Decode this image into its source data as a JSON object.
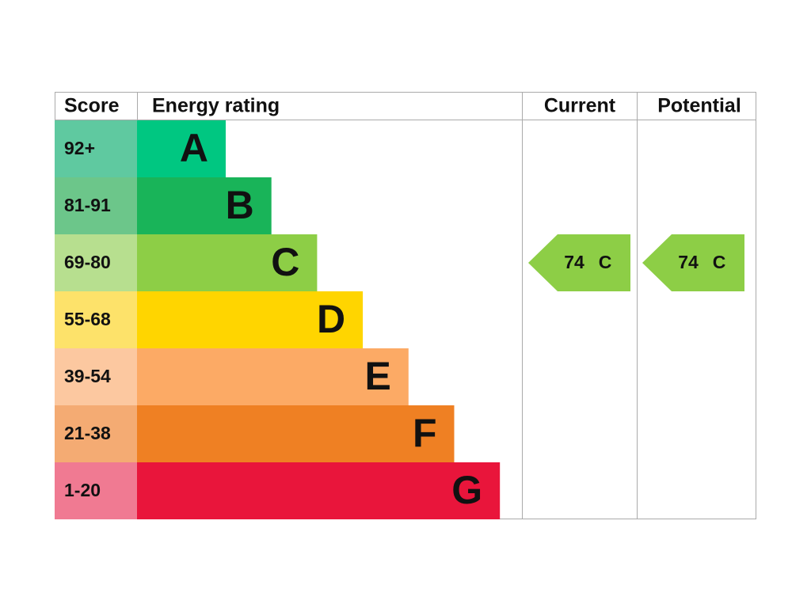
{
  "header": {
    "score": "Score",
    "rating": "Energy rating",
    "current": "Current",
    "potential": "Potential"
  },
  "bands": [
    {
      "score": "92+",
      "letter": "A",
      "score_color": "#5fc9a0",
      "color": "#00c781"
    },
    {
      "score": "81-91",
      "letter": "B",
      "score_color": "#6cc68a",
      "color": "#19b459"
    },
    {
      "score": "69-80",
      "letter": "C",
      "score_color": "#b7df8f",
      "color": "#8dce46"
    },
    {
      "score": "55-68",
      "letter": "D",
      "score_color": "#fde26a",
      "color": "#ffd500"
    },
    {
      "score": "39-54",
      "letter": "E",
      "score_color": "#fcc8a0",
      "color": "#fcaa65"
    },
    {
      "score": "21-38",
      "letter": "F",
      "score_color": "#f4ab73",
      "color": "#ef8023"
    },
    {
      "score": "1-20",
      "letter": "G",
      "score_color": "#f07a92",
      "color": "#e9153b"
    }
  ],
  "current": {
    "score": 74,
    "rating": "C"
  },
  "potential": {
    "score": 74,
    "rating": "C"
  }
}
